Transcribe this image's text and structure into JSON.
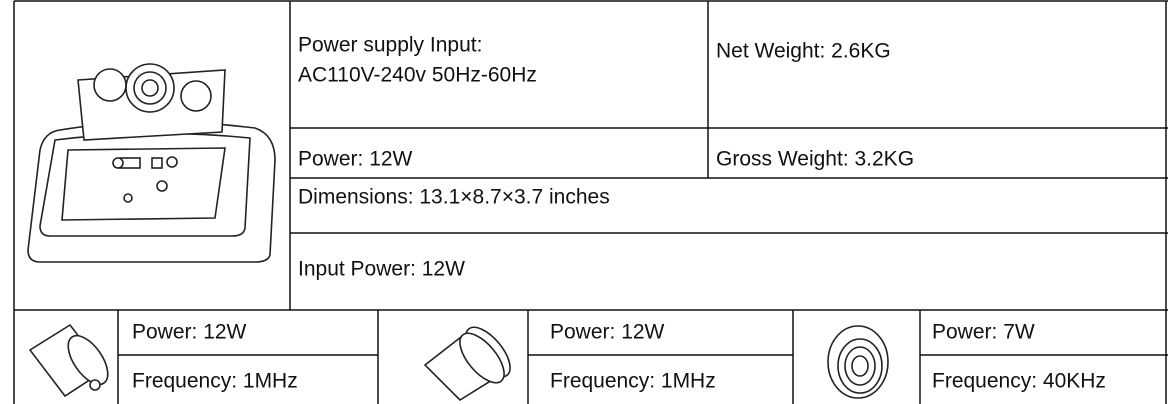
{
  "top_rows": [
    [
      [
        "Power supply Input:",
        "AC110V-240v 50Hz-60Hz"
      ],
      [
        "Net Weight: 2.6KG"
      ]
    ],
    [
      [
        "Power: 12W"
      ],
      [
        "Gross Weight: 3.2KG"
      ]
    ],
    [
      [
        "Dimensions: 13.1×8.7×3.7 inches"
      ]
    ],
    [
      [
        "Input Power: 12W"
      ]
    ]
  ],
  "probes": [
    [
      "Power: 12W",
      "Frequency: 1MHz"
    ],
    [
      "Power: 12W",
      "Frequency: 1MHz"
    ],
    [
      "Power: 7W",
      "Frequency: 40KHz"
    ]
  ]
}
